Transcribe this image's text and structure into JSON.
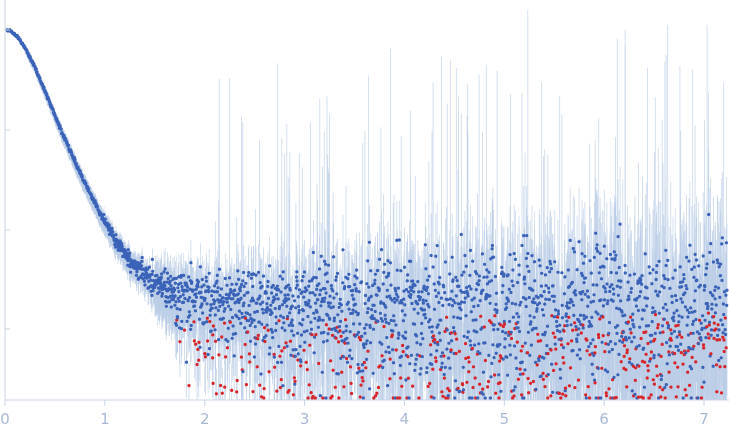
{
  "chart_data": {
    "type": "scatter",
    "title": "",
    "xlabel": "",
    "ylabel": "",
    "xlim": [
      0,
      7.25
    ],
    "x_ticks": [
      0,
      1,
      2,
      3,
      4,
      5,
      6,
      7
    ],
    "x_tick_labels": [
      "0",
      "1",
      "2",
      "3",
      "4",
      "5",
      "6",
      "7"
    ],
    "y_scale": "log",
    "y_tick_labels": [],
    "grid": false,
    "legend": "none",
    "colors": {
      "points": "#3a63b8",
      "negative_points": "#d7262b",
      "error_bars": "#b9cce6",
      "axis": "#c9d3e6",
      "tick_label": "#a9b8d6"
    },
    "series": [
      {
        "x": [
          0.02,
          0.05,
          0.1,
          0.15,
          0.2,
          0.25,
          0.3,
          0.35,
          0.4,
          0.45,
          0.5,
          0.55,
          0.6,
          0.65,
          0.7,
          0.75,
          0.8,
          0.85,
          0.9,
          0.95,
          1.0,
          1.05,
          1.1,
          1.15,
          1.2,
          1.25,
          1.3,
          1.35,
          1.4,
          1.45,
          1.5,
          1.55,
          1.6,
          1.65,
          1.7,
          1.75,
          1.8,
          1.9,
          2.0,
          2.2,
          2.4,
          2.6,
          2.8,
          3.0,
          3.5,
          4.0,
          4.5,
          5.0,
          5.5,
          6.0,
          6.5,
          6.8,
          7.0,
          7.1,
          7.2
        ],
        "y": [
          1.0,
          0.98,
          0.9,
          0.79,
          0.66,
          0.53,
          0.42,
          0.32,
          0.245,
          0.185,
          0.14,
          0.105,
          0.08,
          0.062,
          0.048,
          0.037,
          0.029,
          0.023,
          0.018,
          0.0145,
          0.0118,
          0.0097,
          0.008,
          0.0067,
          0.0057,
          0.0049,
          0.0043,
          0.0038,
          0.0034,
          0.0031,
          0.0029,
          0.0027,
          0.0025,
          0.0024,
          0.0023,
          0.0022,
          0.0021,
          0.002,
          0.0019,
          0.0018,
          0.0018,
          0.0017,
          0.0017,
          0.0017,
          0.0017,
          0.0017,
          0.0017,
          0.0017,
          0.0017,
          0.0017,
          0.0018,
          0.0019,
          0.002,
          0.0021,
          0.0022
        ]
      }
    ]
  }
}
